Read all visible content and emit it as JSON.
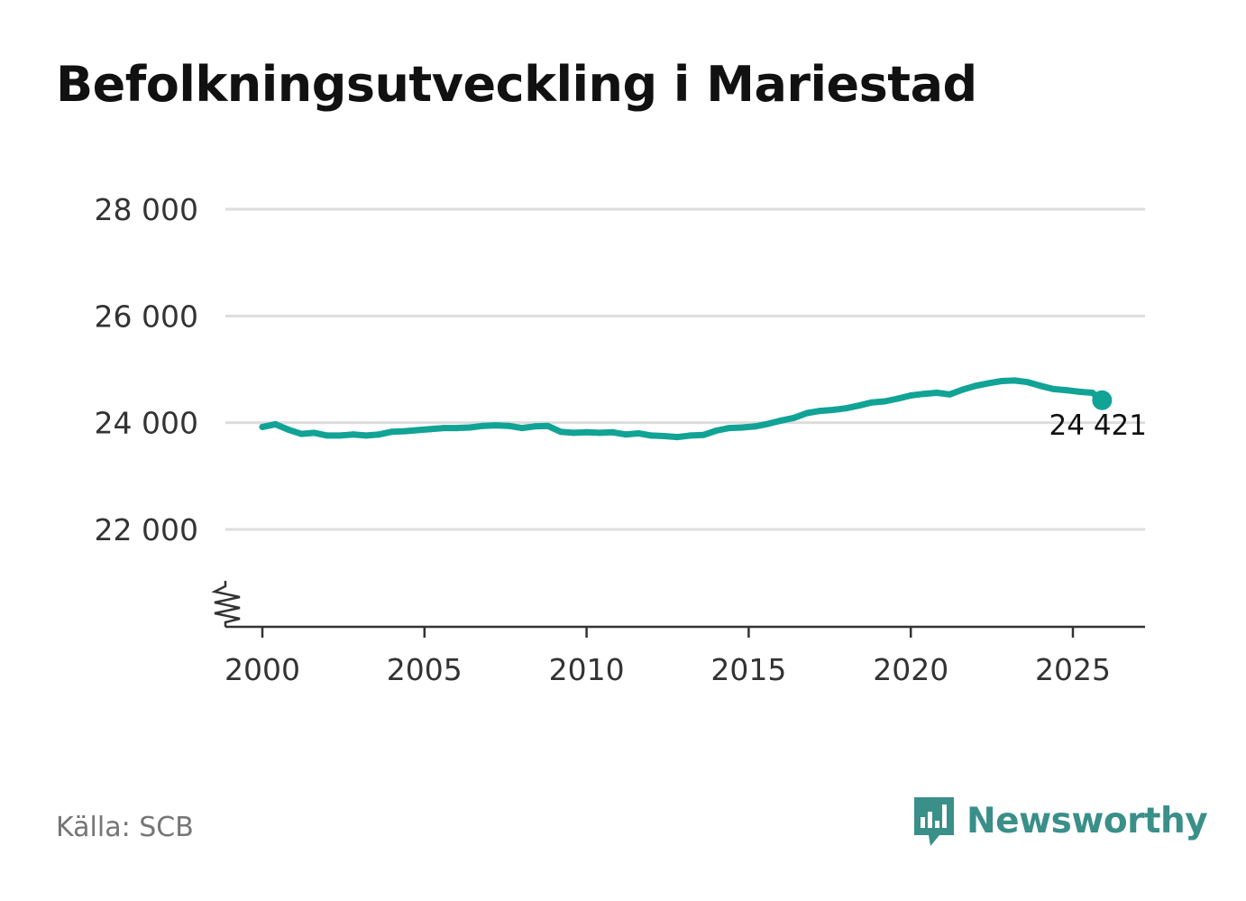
{
  "title": "Befolkningsutveckling i Mariestad",
  "source": "Källa: SCB",
  "brand": {
    "name": "Newsworthy",
    "icon": "newsworthy-logo-icon",
    "color": "#3a8f88"
  },
  "colors": {
    "line": "#11a396",
    "grid": "#dddddd",
    "axis": "#333333",
    "tick_label": "#333333"
  },
  "chart_data": {
    "type": "line",
    "title": "Befolkningsutveckling i Mariestad",
    "xlabel": "",
    "ylabel": "",
    "ylim": [
      20400,
      28000
    ],
    "xlim": [
      1999.6,
      2027.2
    ],
    "axis_break": true,
    "grid": "horizontal",
    "y_ticks": [
      22000,
      24000,
      26000,
      28000
    ],
    "y_tick_labels": [
      "22 000",
      "24 000",
      "26 000",
      "28 000"
    ],
    "x_ticks": [
      2000,
      2005,
      2010,
      2015,
      2020,
      2025
    ],
    "x_tick_labels": [
      "2000",
      "2005",
      "2010",
      "2015",
      "2020",
      "2025"
    ],
    "series": [
      {
        "name": "Befolkning",
        "points": [
          [
            2000.0,
            23920
          ],
          [
            2000.4,
            23970
          ],
          [
            2000.8,
            23870
          ],
          [
            2001.2,
            23790
          ],
          [
            2001.6,
            23810
          ],
          [
            2002.0,
            23760
          ],
          [
            2002.4,
            23760
          ],
          [
            2002.8,
            23780
          ],
          [
            2003.2,
            23760
          ],
          [
            2003.6,
            23780
          ],
          [
            2004.0,
            23830
          ],
          [
            2004.4,
            23840
          ],
          [
            2004.8,
            23860
          ],
          [
            2005.2,
            23880
          ],
          [
            2005.6,
            23900
          ],
          [
            2006.0,
            23900
          ],
          [
            2006.4,
            23910
          ],
          [
            2006.8,
            23940
          ],
          [
            2007.2,
            23950
          ],
          [
            2007.6,
            23940
          ],
          [
            2008.0,
            23900
          ],
          [
            2008.4,
            23930
          ],
          [
            2008.8,
            23940
          ],
          [
            2009.2,
            23830
          ],
          [
            2009.6,
            23810
          ],
          [
            2010.0,
            23820
          ],
          [
            2010.4,
            23810
          ],
          [
            2010.8,
            23820
          ],
          [
            2011.2,
            23780
          ],
          [
            2011.6,
            23800
          ],
          [
            2012.0,
            23760
          ],
          [
            2012.4,
            23750
          ],
          [
            2012.8,
            23730
          ],
          [
            2013.2,
            23760
          ],
          [
            2013.6,
            23770
          ],
          [
            2014.0,
            23850
          ],
          [
            2014.4,
            23900
          ],
          [
            2014.8,
            23910
          ],
          [
            2015.2,
            23930
          ],
          [
            2015.6,
            23980
          ],
          [
            2016.0,
            24040
          ],
          [
            2016.4,
            24090
          ],
          [
            2016.8,
            24180
          ],
          [
            2017.2,
            24220
          ],
          [
            2017.6,
            24240
          ],
          [
            2018.0,
            24270
          ],
          [
            2018.4,
            24320
          ],
          [
            2018.8,
            24380
          ],
          [
            2019.2,
            24400
          ],
          [
            2019.6,
            24450
          ],
          [
            2020.0,
            24510
          ],
          [
            2020.4,
            24540
          ],
          [
            2020.8,
            24560
          ],
          [
            2021.2,
            24530
          ],
          [
            2021.6,
            24620
          ],
          [
            2022.0,
            24690
          ],
          [
            2022.4,
            24740
          ],
          [
            2022.8,
            24780
          ],
          [
            2023.2,
            24790
          ],
          [
            2023.6,
            24760
          ],
          [
            2024.0,
            24690
          ],
          [
            2024.4,
            24630
          ],
          [
            2024.8,
            24610
          ],
          [
            2025.2,
            24580
          ],
          [
            2025.6,
            24560
          ],
          [
            2025.9,
            24421
          ]
        ]
      }
    ],
    "last_point": {
      "x": 2025.9,
      "y": 24421,
      "label": "24 421"
    }
  }
}
